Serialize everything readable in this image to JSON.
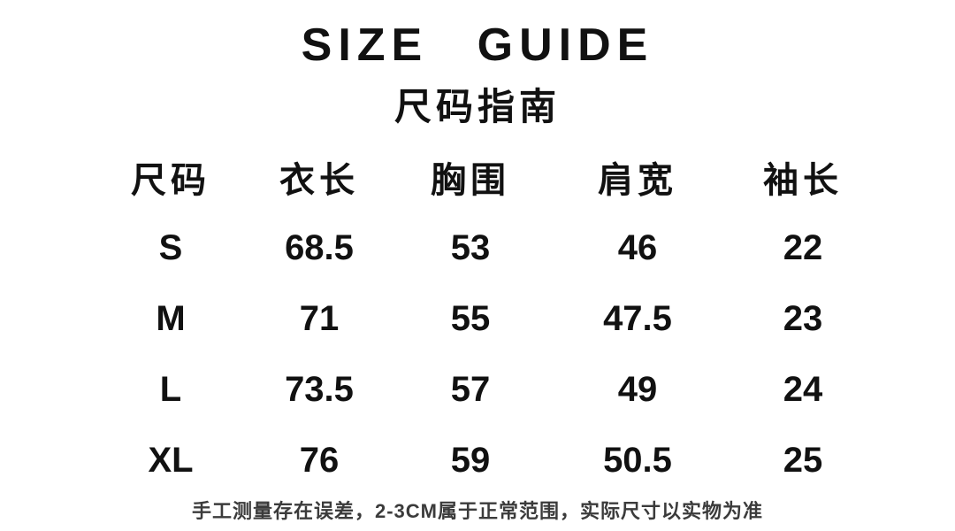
{
  "chart_data": {
    "type": "table",
    "title": "SIZE GUIDE",
    "subtitle": "尺码指南",
    "columns": [
      "尺码",
      "衣长",
      "胸围",
      "肩宽",
      "袖长"
    ],
    "rows": [
      [
        "S",
        "68.5",
        "53",
        "46",
        "22"
      ],
      [
        "M",
        "71",
        "55",
        "47.5",
        "23"
      ],
      [
        "L",
        "73.5",
        "57",
        "49",
        "24"
      ],
      [
        "XL",
        "76",
        "59",
        "50.5",
        "25"
      ]
    ],
    "footnote": "手工测量存在误差，2-3CM属于正常范围，实际尺寸以实物为准",
    "layout": {
      "grid": "off",
      "borders": "none",
      "alignment": "center"
    }
  },
  "colors": {
    "background": "#ffffff",
    "text": "#111111",
    "footnote_text": "#3b3b3b"
  }
}
